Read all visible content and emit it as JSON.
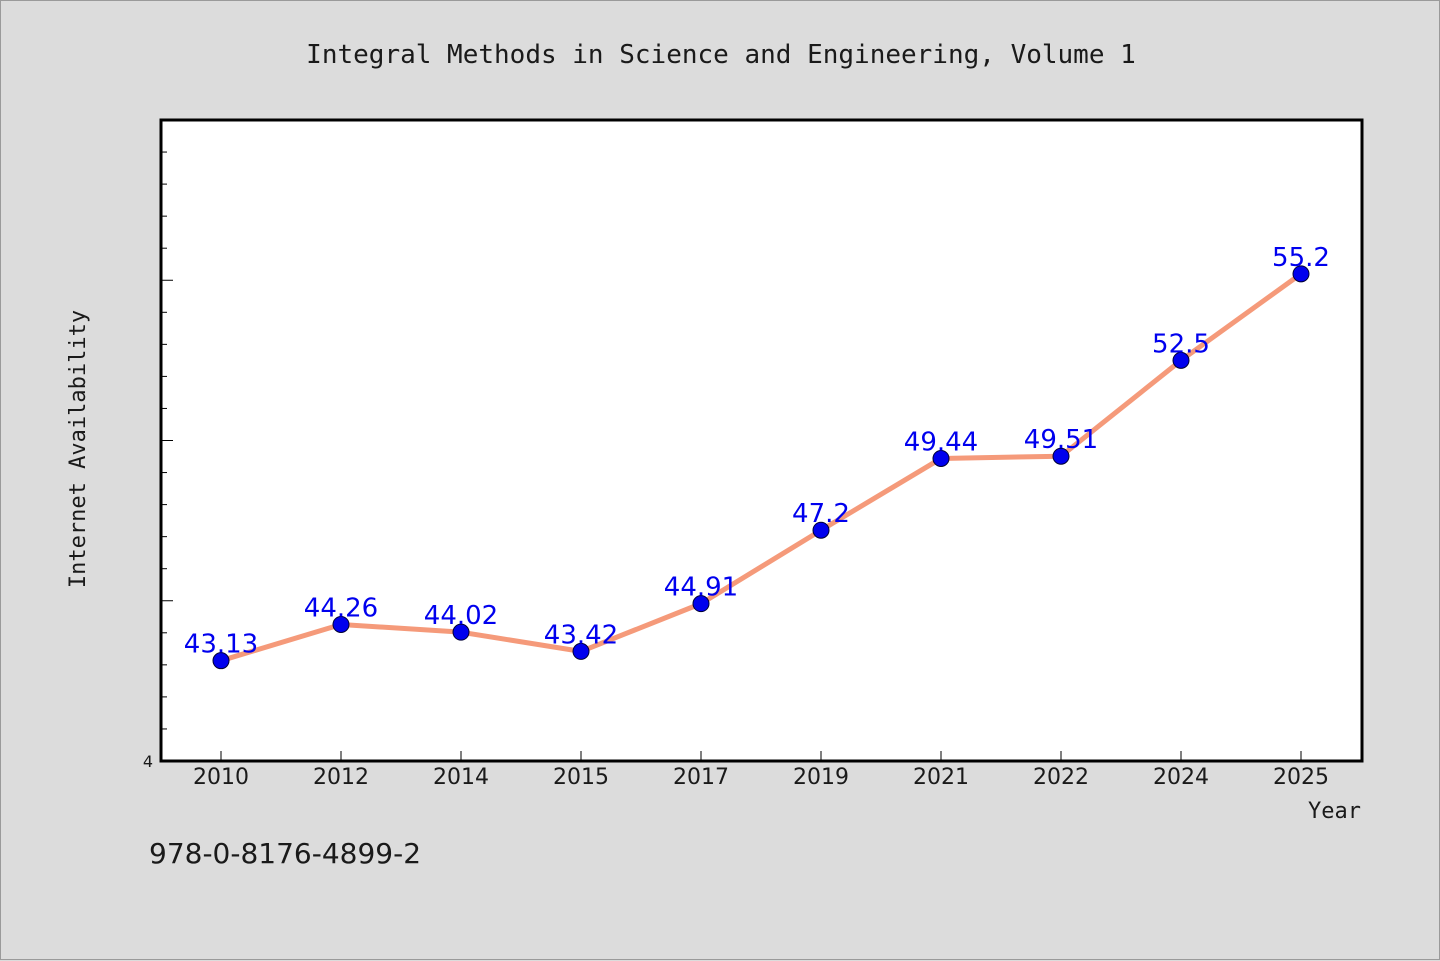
{
  "chart_data": {
    "type": "line",
    "title": "Integral Methods in Science and Engineering, Volume 1",
    "xlabel": "Year",
    "ylabel": "Internet Availability",
    "categories": [
      "2010",
      "2012",
      "2014",
      "2015",
      "2017",
      "2019",
      "2021",
      "2022",
      "2024",
      "2025"
    ],
    "series": [
      {
        "values": [
          43.13,
          44.26,
          44.02,
          43.42,
          44.91,
          47.2,
          49.44,
          49.51,
          52.5,
          55.2
        ],
        "data_labels": [
          "43.13",
          "44.26",
          "44.02",
          "43.42",
          "44.91",
          "47.2",
          "49.44",
          "49.51",
          "52.5",
          "55.2"
        ]
      }
    ],
    "y_tick_labels": [
      "4"
    ],
    "ylim": [
      40,
      60
    ],
    "grid": false,
    "colors": {
      "line": "#f59a7a",
      "marker": "#0000ee",
      "label": "#0000ee"
    }
  },
  "footer": {
    "isbn": "978-0-8176-4899-2"
  }
}
